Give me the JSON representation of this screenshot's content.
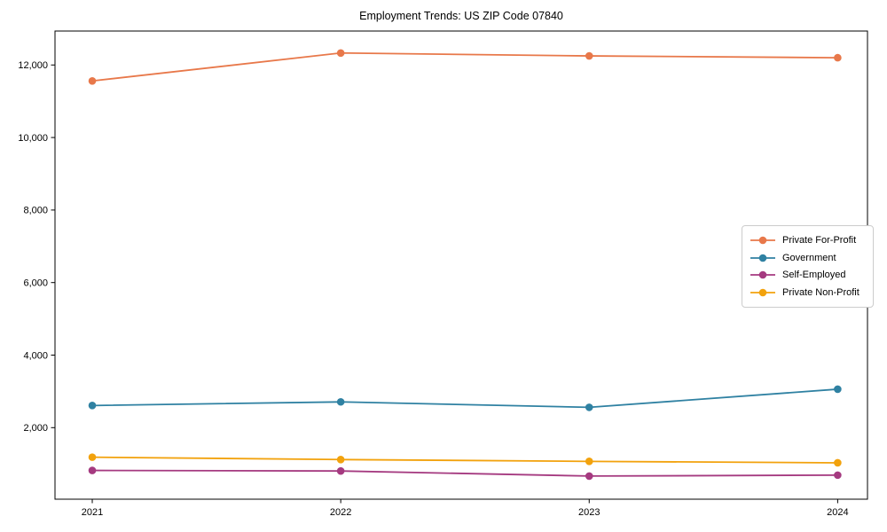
{
  "chart_data": {
    "type": "line",
    "title": "Employment Trends: US ZIP Code 07840",
    "xlabel": "",
    "ylabel": "",
    "x": [
      2021,
      2022,
      2023,
      2024
    ],
    "x_tick_labels": [
      "2021",
      "2022",
      "2023",
      "2024"
    ],
    "yticks": [
      2000,
      4000,
      6000,
      8000,
      10000,
      12000
    ],
    "y_tick_labels": [
      "2,000",
      "4,000",
      "6,000",
      "8,000",
      "10,000",
      "12,000"
    ],
    "xlim": [
      2020.85,
      2024.12
    ],
    "ylim": [
      27,
      12936
    ],
    "grid": false,
    "legend_position": "center-right",
    "marker": "circle",
    "series": [
      {
        "name": "Private For-Profit",
        "color": "#e8784a",
        "values": [
          11560,
          12330,
          12250,
          12200
        ]
      },
      {
        "name": "Government",
        "color": "#2f81a2",
        "values": [
          2610,
          2710,
          2560,
          3060
        ]
      },
      {
        "name": "Self-Employed",
        "color": "#a53a80",
        "values": [
          820,
          805,
          665,
          690
        ]
      },
      {
        "name": "Private Non-Profit",
        "color": "#f2a20d",
        "values": [
          1185,
          1120,
          1070,
          1030
        ]
      }
    ],
    "axis_color": "#000000",
    "background_color": "#ffffff"
  }
}
